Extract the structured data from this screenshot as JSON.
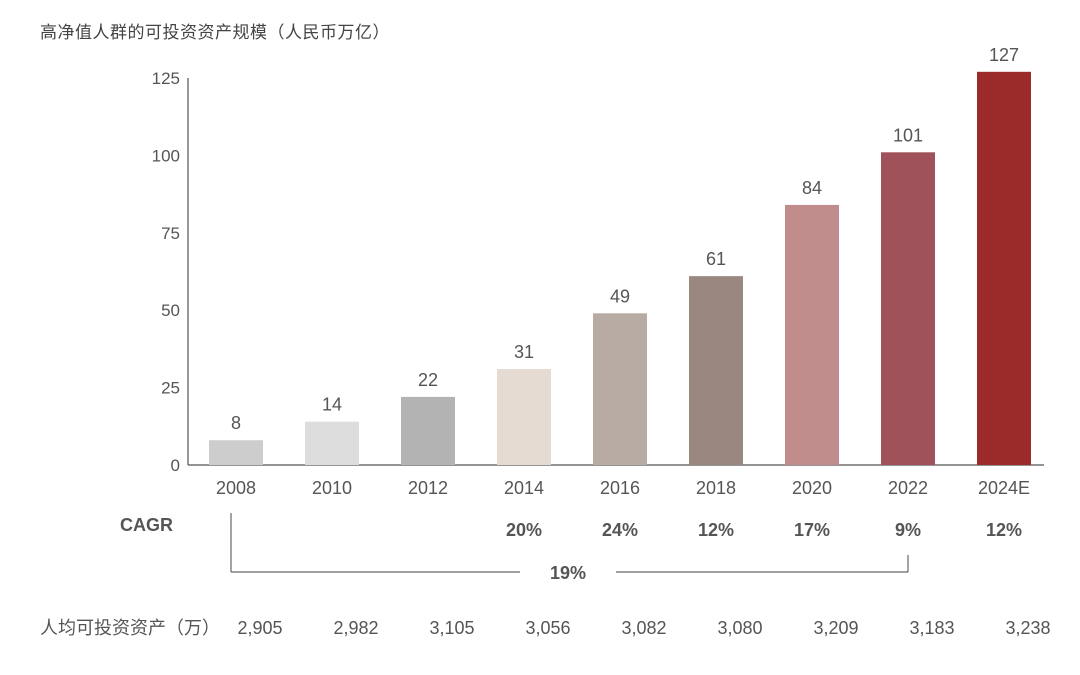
{
  "title": "高净值人群的可投资资产规模（人民币万亿）",
  "chart_data": {
    "type": "bar",
    "categories": [
      "2008",
      "2010",
      "2012",
      "2014",
      "2016",
      "2018",
      "2020",
      "2022",
      "2024E"
    ],
    "values": [
      8,
      14,
      22,
      31,
      49,
      61,
      84,
      101,
      127
    ],
    "bar_colors": [
      "#cdcdcd",
      "#dddddd",
      "#b3b3b3",
      "#e6dbd3",
      "#b8aba3",
      "#9a8880",
      "#c08c8c",
      "#a0525a",
      "#9b2b2b"
    ],
    "ylim": [
      0,
      125
    ],
    "yticks": [
      "0",
      "25",
      "50",
      "75",
      "100",
      "125"
    ],
    "grid": false,
    "cagr": {
      "label": "CAGR",
      "values": [
        "",
        "",
        "",
        "20%",
        "24%",
        "12%",
        "17%",
        "9%",
        "12%"
      ],
      "overall": "19%"
    },
    "per_capita": {
      "label": "人均可投资资产（万）",
      "values": [
        "2,905",
        "2,982",
        "3,105",
        "3,056",
        "3,082",
        "3,080",
        "3,209",
        "3,183",
        "3,238"
      ]
    }
  }
}
